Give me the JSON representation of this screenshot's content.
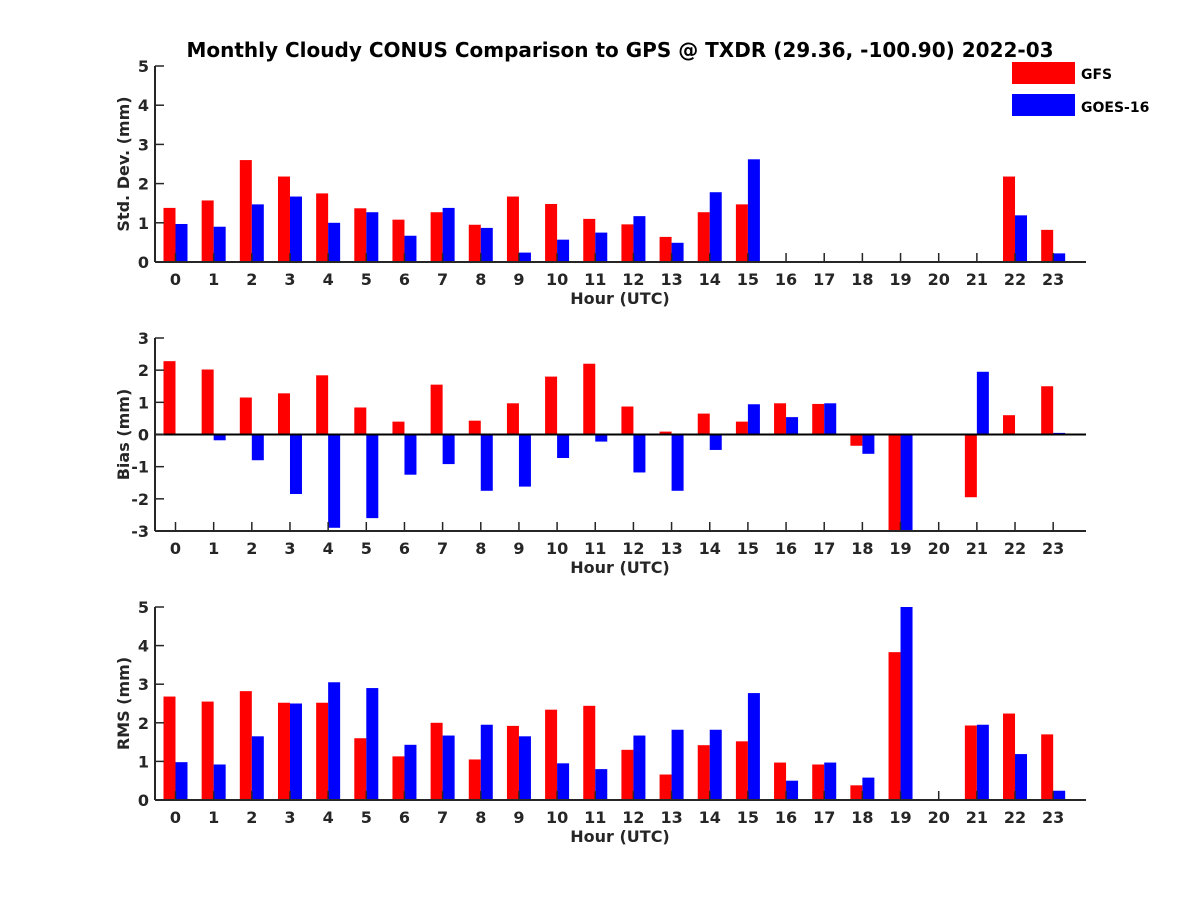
{
  "chart_data": [
    {
      "type": "bar",
      "title": "Monthly Cloudy CONUS Comparison to GPS @ TXDR (29.36, -100.90) 2022-03",
      "xlabel": "Hour (UTC)",
      "ylabel": "Std. Dev. (mm)",
      "ylim": [
        0,
        5
      ],
      "yticks": [
        0,
        1,
        2,
        3,
        4,
        5
      ],
      "categories": [
        "0",
        "1",
        "2",
        "3",
        "4",
        "5",
        "6",
        "7",
        "8",
        "9",
        "10",
        "11",
        "12",
        "13",
        "14",
        "15",
        "16",
        "17",
        "18",
        "19",
        "20",
        "21",
        "22",
        "23"
      ],
      "series": [
        {
          "name": "GFS",
          "color": "#ff0000",
          "values": [
            1.38,
            1.57,
            2.6,
            2.18,
            1.75,
            1.37,
            1.08,
            1.27,
            0.95,
            1.67,
            1.48,
            1.1,
            0.96,
            0.64,
            1.27,
            1.47,
            0,
            0,
            0,
            0,
            0,
            0,
            2.18,
            0.82
          ]
        },
        {
          "name": "GOES-16",
          "color": "#0000ff",
          "values": [
            0.97,
            0.9,
            1.47,
            1.67,
            1.0,
            1.27,
            0.67,
            1.38,
            0.87,
            0.24,
            0.57,
            0.75,
            1.17,
            0.49,
            1.78,
            2.62,
            0,
            0,
            0,
            0,
            0,
            0,
            1.19,
            0.22
          ]
        }
      ],
      "legend": "top-right",
      "grid": false
    },
    {
      "type": "bar",
      "xlabel": "Hour (UTC)",
      "ylabel": "Bias (mm)",
      "ylim": [
        -3,
        3
      ],
      "yticks": [
        -3,
        -2,
        -1,
        0,
        1,
        2,
        3
      ],
      "categories": [
        "0",
        "1",
        "2",
        "3",
        "4",
        "5",
        "6",
        "7",
        "8",
        "9",
        "10",
        "11",
        "12",
        "13",
        "14",
        "15",
        "16",
        "17",
        "18",
        "19",
        "20",
        "21",
        "22",
        "23"
      ],
      "series": [
        {
          "name": "GFS",
          "color": "#ff0000",
          "values": [
            2.28,
            2.02,
            1.15,
            1.28,
            1.84,
            0.84,
            0.4,
            1.55,
            0.43,
            0.97,
            1.8,
            2.2,
            0.87,
            0.09,
            0.65,
            0.4,
            0.97,
            0.95,
            -0.35,
            -3.0,
            0,
            -1.95,
            0.6,
            1.5
          ]
        },
        {
          "name": "GOES-16",
          "color": "#0000ff",
          "values": [
            0.03,
            -0.18,
            -0.8,
            -1.85,
            -2.9,
            -2.6,
            -1.25,
            -0.92,
            -1.75,
            -1.62,
            -0.73,
            -0.22,
            -1.18,
            -1.75,
            -0.48,
            0.94,
            0.54,
            0.97,
            -0.6,
            -3.0,
            0,
            1.95,
            0.03,
            0.05
          ]
        }
      ],
      "grid": false
    },
    {
      "type": "bar",
      "xlabel": "Hour (UTC)",
      "ylabel": "RMS (mm)",
      "ylim": [
        0,
        5
      ],
      "yticks": [
        0,
        1,
        2,
        3,
        4,
        5
      ],
      "categories": [
        "0",
        "1",
        "2",
        "3",
        "4",
        "5",
        "6",
        "7",
        "8",
        "9",
        "10",
        "11",
        "12",
        "13",
        "14",
        "15",
        "16",
        "17",
        "18",
        "19",
        "20",
        "21",
        "22",
        "23"
      ],
      "series": [
        {
          "name": "GFS",
          "color": "#ff0000",
          "values": [
            2.68,
            2.55,
            2.82,
            2.52,
            2.52,
            1.6,
            1.13,
            2.0,
            1.05,
            1.92,
            2.34,
            2.44,
            1.3,
            0.66,
            1.42,
            1.52,
            0.97,
            0.92,
            0.38,
            3.83,
            0,
            1.93,
            2.24,
            1.7
          ]
        },
        {
          "name": "GOES-16",
          "color": "#0000ff",
          "values": [
            0.98,
            0.92,
            1.65,
            2.5,
            3.05,
            2.9,
            1.43,
            1.67,
            1.95,
            1.65,
            0.95,
            0.8,
            1.67,
            1.82,
            1.82,
            2.77,
            0.5,
            0.97,
            0.58,
            5.0,
            0,
            1.95,
            1.19,
            0.24
          ]
        }
      ],
      "grid": false
    }
  ]
}
